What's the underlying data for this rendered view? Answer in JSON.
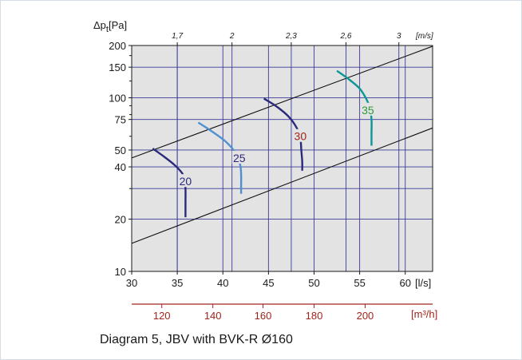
{
  "caption": "Diagram 5, JBV with BVK-R Ø160",
  "chart_data": {
    "type": "line",
    "title": "",
    "ylabel": "Δp",
    "ylabel_sub": "t",
    "ylabel_unit": "[Pa]",
    "xlabel": "[l/s]",
    "x_scale": "linear",
    "y_scale": "log",
    "xlim": [
      30,
      63
    ],
    "ylim": [
      10,
      200
    ],
    "grid": true,
    "x_ticks": [
      30,
      35,
      40,
      45,
      50,
      55,
      60
    ],
    "y_ticks": [
      10,
      20,
      40,
      50,
      75,
      100,
      150,
      200
    ],
    "y_gridlines": [
      10,
      20,
      30,
      40,
      50,
      75,
      100,
      150,
      200
    ],
    "top_axis": {
      "label": "[m/s]",
      "ticks": [
        {
          "label": "1,7",
          "x": 35.0
        },
        {
          "label": "2",
          "x": 41.0
        },
        {
          "label": "2,3",
          "x": 47.5
        },
        {
          "label": "2,6",
          "x": 53.5
        },
        {
          "label": "3",
          "x": 59.3
        }
      ]
    },
    "secondary_axis": {
      "label": "[m³/h]",
      "ticks": [
        {
          "label": "120",
          "x": 33.3
        },
        {
          "label": "140",
          "x": 38.9
        },
        {
          "label": "160",
          "x": 44.4
        },
        {
          "label": "180",
          "x": 50.0
        },
        {
          "label": "200",
          "x": 55.6
        }
      ]
    },
    "boundary_lines": [
      {
        "x": [
          30,
          63
        ],
        "y": [
          45,
          198
        ]
      },
      {
        "x": [
          30,
          63
        ],
        "y": [
          14.5,
          67
        ]
      }
    ],
    "series": [
      {
        "name": "20",
        "color": "#2b2a7a",
        "label_at": [
          35.9,
          33
        ],
        "x": [
          32.3,
          33.5,
          34.7,
          35.5,
          35.8,
          35.9,
          35.9,
          35.9
        ],
        "y": [
          51,
          46,
          41,
          37,
          34,
          30,
          25,
          20.5
        ]
      },
      {
        "name": "25",
        "color": "#4e90d0",
        "label_at": [
          41.8,
          45
        ],
        "x": [
          37.3,
          38.8,
          40.3,
          41.4,
          41.9,
          42.0,
          42.0,
          42.0
        ],
        "y": [
          72,
          64,
          56,
          48,
          41,
          36,
          31,
          28
        ]
      },
      {
        "name": "30",
        "color": "#2b2a7a",
        "label_at": [
          48.5,
          60
        ],
        "x": [
          44.5,
          45.9,
          47.2,
          48.1,
          48.5,
          48.6,
          48.7,
          48.7
        ],
        "y": [
          99,
          89,
          78,
          67,
          58,
          50,
          43,
          38
        ]
      },
      {
        "name": "35",
        "color": "#0e9595",
        "label_at": [
          55.9,
          85
        ],
        "x": [
          52.5,
          53.8,
          55.0,
          55.7,
          56.1,
          56.3,
          56.3,
          56.3
        ],
        "y": [
          143,
          128,
          113,
          99,
          88,
          75,
          62,
          53
        ]
      }
    ],
    "label_colors": {
      "20": "#2b2a7a",
      "25": "#2b2a7a",
      "30": "#a1241c",
      "35": "#2e9a3e"
    }
  }
}
